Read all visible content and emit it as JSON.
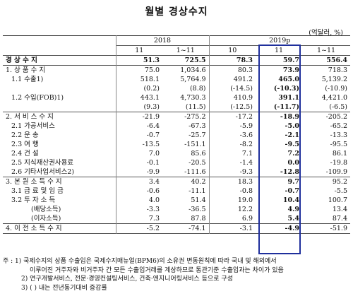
{
  "title": "월별 경상수지",
  "unit": "(억달러, %)",
  "header": {
    "year1": "2018",
    "year2": "2019p",
    "cols": [
      "11",
      "1~11",
      "10",
      "11",
      "1~11"
    ]
  },
  "rows": [
    {
      "label": "경 상 수 지",
      "vals": [
        "51.3",
        "725.5",
        "78.3",
        "59.7",
        "556.4"
      ]
    },
    {
      "label": "1. 상 품 수 지",
      "vals": [
        "75.0",
        "1,034.6",
        "80.3",
        "73.9",
        "718.3"
      ]
    },
    {
      "label": "1.1 수출1)",
      "vals": [
        "518.1",
        "5,764.9",
        "491.2",
        "465.0",
        "5,139.2"
      ]
    },
    {
      "label": "",
      "vals": [
        "(0.2)",
        "(8.8)",
        "(-14.5)",
        "(-10.3)",
        "(-10.9)"
      ]
    },
    {
      "label": "1.2 수입(FOB)1)",
      "vals": [
        "443.1",
        "4,730.3",
        "410.9",
        "391.1",
        "4,421.0"
      ]
    },
    {
      "label": "",
      "vals": [
        "(9.3)",
        "(11.5)",
        "(-12.5)",
        "(-11.7)",
        "(-6.5)"
      ]
    },
    {
      "label": "2. 서 비 스 수 지",
      "vals": [
        "-21.9",
        "-275.2",
        "-17.2",
        "-18.9",
        "-205.2"
      ]
    },
    {
      "label": "2.1 가공서비스",
      "vals": [
        "-6.4",
        "-67.3",
        "-5.9",
        "-5.0",
        "-65.2"
      ]
    },
    {
      "label": "2.2 운 송",
      "vals": [
        "-0.7",
        "-25.7",
        "-3.6",
        "-2.1",
        "-13.3"
      ]
    },
    {
      "label": "2.3 여 행",
      "vals": [
        "-13.5",
        "-151.1",
        "-8.2",
        "-9.5",
        "-95.5"
      ]
    },
    {
      "label": "2.4 건 설",
      "vals": [
        "7.0",
        "85.6",
        "7.1",
        "7.2",
        "86.1"
      ]
    },
    {
      "label": "2.5 지식재산권사용료",
      "vals": [
        "-0.1",
        "-20.5",
        "-1.4",
        "0.0",
        "-19.8"
      ]
    },
    {
      "label": "2.6 기타사업서비스2)",
      "vals": [
        "-9.9",
        "-111.6",
        "-9.3",
        "-12.8",
        "-109.9"
      ]
    },
    {
      "label": "3. 본 원 소 득 수 지",
      "vals": [
        "3.4",
        "40.2",
        "18.3",
        "9.7",
        "95.2"
      ]
    },
    {
      "label": "3.1 급 료 및 임 금",
      "vals": [
        "-0.6",
        "-11.1",
        "-0.8",
        "-0.7",
        "-5.5"
      ]
    },
    {
      "label": "3.2 투 자 소 득",
      "vals": [
        "4.0",
        "51.4",
        "19.0",
        "10.4",
        "100.7"
      ]
    },
    {
      "label": "(배당소득)",
      "vals": [
        "-3.3",
        "-36.5",
        "12.2",
        "4.9",
        "13.4"
      ]
    },
    {
      "label": "(이자소득)",
      "vals": [
        "7.3",
        "87.8",
        "6.9",
        "5.4",
        "87.4"
      ]
    },
    {
      "label": "4. 이 전 소 득 수 지",
      "vals": [
        "-5.2",
        "-74.1",
        "-3.1",
        "-4.9",
        "-51.9"
      ]
    }
  ],
  "notes": [
    "주 : 1) 국제수지의 상품 수출입은 국제수지매뉴얼(BPM6)의 소유권 변동원칙에 따라 국내 및 해외에서",
    "이루어진 거주자와 비거주자 간 모든 수출입거래를 계상하므로 통관기준 수출입과는 차이가 있음",
    "2) 연구개발서비스, 전문·경영컨설팅서비스, 건축·엔지니어링서비스 등으로 구성",
    "3) ( ) 내는 전년동기대비 증감률"
  ],
  "colors": {
    "highlight": "#1f2f9c"
  }
}
